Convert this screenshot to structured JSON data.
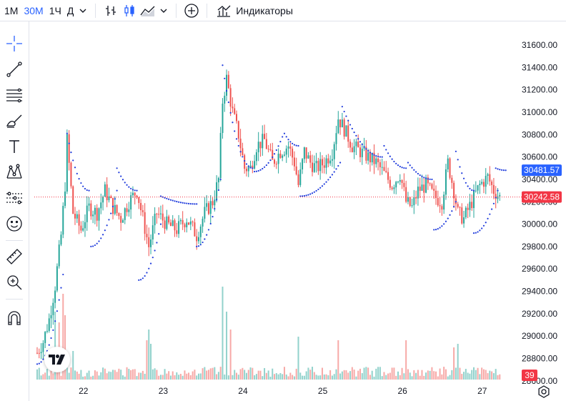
{
  "toolbar": {
    "timeframes": [
      "1М",
      "30М",
      "1Ч",
      "Д"
    ],
    "active_timeframe": "30М",
    "indicators_label": "Индикаторы"
  },
  "colors": {
    "up": "#26a69a",
    "down": "#ef5350",
    "sar": "#1f3bdc",
    "accent": "#2962ff",
    "last_price_badge": "#f23645",
    "sar_badge": "#2962ff"
  },
  "chart_data": {
    "type": "candlestick",
    "ylim": [
      28420,
      31760
    ],
    "y_ticks": [
      31600,
      31400,
      31200,
      31000,
      30800,
      30600,
      30400,
      30200,
      30000,
      29800,
      29600,
      29400,
      29200,
      29000,
      28800,
      28600
    ],
    "y_tick_labels": [
      "31600.00",
      "31400.00",
      "31200.00",
      "31000.00",
      "30800.00",
      "30600.00",
      "30400.00",
      "30200.00",
      "30000.00",
      "29800.00",
      "29600.00",
      "29400.00",
      "29200.00",
      "29000.00",
      "28800.00",
      "28600.00"
    ],
    "x_ticks": [
      "22",
      "23",
      "24",
      "25",
      "26",
      "27"
    ],
    "last_price": 30242.58,
    "last_price_label": "30242.58",
    "sar_value": 30481.57,
    "sar_value_label": "30481.57",
    "volume_label": "39",
    "close_path": [
      {
        "t": 0,
        "p": 28850
      },
      {
        "t": 3,
        "p": 28950
      },
      {
        "t": 6,
        "p": 29150
      },
      {
        "t": 9,
        "p": 29450
      },
      {
        "t": 12,
        "p": 29900
      },
      {
        "t": 14,
        "p": 30350
      },
      {
        "t": 15,
        "p": 30750
      },
      {
        "t": 18,
        "p": 30100
      },
      {
        "t": 22,
        "p": 29950
      },
      {
        "t": 26,
        "p": 30150
      },
      {
        "t": 30,
        "p": 30100
      },
      {
        "t": 34,
        "p": 30300
      },
      {
        "t": 38,
        "p": 30150
      },
      {
        "t": 42,
        "p": 30050
      },
      {
        "t": 46,
        "p": 30200
      },
      {
        "t": 50,
        "p": 30300
      },
      {
        "t": 53,
        "p": 30050
      },
      {
        "t": 56,
        "p": 29800
      },
      {
        "t": 60,
        "p": 30100
      },
      {
        "t": 65,
        "p": 30000
      },
      {
        "t": 70,
        "p": 29950
      },
      {
        "t": 75,
        "p": 30050
      },
      {
        "t": 80,
        "p": 29900
      },
      {
        "t": 84,
        "p": 30100
      },
      {
        "t": 88,
        "p": 30200
      },
      {
        "t": 91,
        "p": 30400
      },
      {
        "t": 93,
        "p": 31100
      },
      {
        "t": 95,
        "p": 31300
      },
      {
        "t": 98,
        "p": 31000
      },
      {
        "t": 101,
        "p": 30800
      },
      {
        "t": 104,
        "p": 30500
      },
      {
        "t": 107,
        "p": 30500
      },
      {
        "t": 110,
        "p": 30700
      },
      {
        "t": 114,
        "p": 30750
      },
      {
        "t": 118,
        "p": 30550
      },
      {
        "t": 122,
        "p": 30650
      },
      {
        "t": 126,
        "p": 30700
      },
      {
        "t": 129,
        "p": 30550
      },
      {
        "t": 131,
        "p": 30350
      },
      {
        "t": 134,
        "p": 30650
      },
      {
        "t": 137,
        "p": 30550
      },
      {
        "t": 140,
        "p": 30500
      },
      {
        "t": 144,
        "p": 30550
      },
      {
        "t": 148,
        "p": 30650
      },
      {
        "t": 151,
        "p": 30950
      },
      {
        "t": 154,
        "p": 30850
      },
      {
        "t": 158,
        "p": 30700
      },
      {
        "t": 162,
        "p": 30650
      },
      {
        "t": 166,
        "p": 30600
      },
      {
        "t": 170,
        "p": 30550
      },
      {
        "t": 174,
        "p": 30450
      },
      {
        "t": 178,
        "p": 30350
      },
      {
        "t": 182,
        "p": 30450
      },
      {
        "t": 185,
        "p": 30200
      },
      {
        "t": 188,
        "p": 30150
      },
      {
        "t": 191,
        "p": 30300
      },
      {
        "t": 195,
        "p": 30350
      },
      {
        "t": 199,
        "p": 30250
      },
      {
        "t": 203,
        "p": 30200
      },
      {
        "t": 206,
        "p": 30550
      },
      {
        "t": 209,
        "p": 30300
      },
      {
        "t": 211,
        "p": 30100
      },
      {
        "t": 214,
        "p": 30050
      },
      {
        "t": 218,
        "p": 30200
      },
      {
        "t": 222,
        "p": 30350
      },
      {
        "t": 226,
        "p": 30420
      },
      {
        "t": 229,
        "p": 30300
      },
      {
        "t": 232,
        "p": 30243
      }
    ],
    "sar_segments": [
      {
        "t0": 0,
        "t1": 13,
        "p0": 28750,
        "p1": 29550
      },
      {
        "t0": 15,
        "t1": 26,
        "p0": 30810,
        "p1": 30300
      },
      {
        "t0": 27,
        "t1": 40,
        "p0": 29800,
        "p1": 30300
      },
      {
        "t0": 40,
        "t1": 50,
        "p0": 30500,
        "p1": 30300
      },
      {
        "t0": 51,
        "t1": 62,
        "p0": 29500,
        "p1": 30000
      },
      {
        "t0": 62,
        "t1": 80,
        "p0": 30250,
        "p1": 30180
      },
      {
        "t0": 80,
        "t1": 92,
        "p0": 29800,
        "p1": 30400
      },
      {
        "t0": 93,
        "t1": 108,
        "p0": 31420,
        "p1": 30500
      },
      {
        "t0": 109,
        "t1": 123,
        "p0": 30470,
        "p1": 30780
      },
      {
        "t0": 124,
        "t1": 131,
        "p0": 30810,
        "p1": 30700
      },
      {
        "t0": 132,
        "t1": 152,
        "p0": 30250,
        "p1": 30550
      },
      {
        "t0": 153,
        "t1": 173,
        "p0": 31050,
        "p1": 30600
      },
      {
        "t0": 174,
        "t1": 185,
        "p0": 30700,
        "p1": 30500
      },
      {
        "t0": 186,
        "t1": 198,
        "p0": 30550,
        "p1": 30400
      },
      {
        "t0": 199,
        "t1": 210,
        "p0": 29950,
        "p1": 30200
      },
      {
        "t0": 210,
        "t1": 219,
        "p0": 30650,
        "p1": 30300
      },
      {
        "t0": 219,
        "t1": 231,
        "p0": 29920,
        "p1": 30300
      },
      {
        "t0": 230,
        "t1": 235,
        "p0": 30500,
        "p1": 30481
      }
    ],
    "volume_spikes": [
      {
        "t": 9,
        "v": 95
      },
      {
        "t": 11,
        "v": 80
      },
      {
        "t": 13,
        "v": 120
      },
      {
        "t": 14,
        "v": 90
      },
      {
        "t": 18,
        "v": 40
      },
      {
        "t": 55,
        "v": 55
      },
      {
        "t": 56,
        "v": 70
      },
      {
        "t": 57,
        "v": 50
      },
      {
        "t": 93,
        "v": 130
      },
      {
        "t": 95,
        "v": 95
      },
      {
        "t": 97,
        "v": 70
      },
      {
        "t": 131,
        "v": 60
      },
      {
        "t": 151,
        "v": 55
      },
      {
        "t": 185,
        "v": 55
      },
      {
        "t": 209,
        "v": 45
      },
      {
        "t": 211,
        "v": 50
      }
    ]
  }
}
